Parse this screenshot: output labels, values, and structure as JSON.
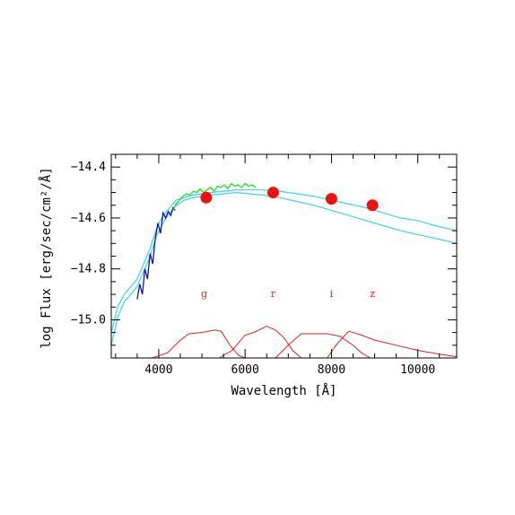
{
  "chart_data": {
    "type": "line",
    "title": "",
    "xlabel": "Wavelength [Å]",
    "ylabel": "log Flux [erg/sec/cm²/Å]",
    "xlim": [
      2900,
      10900
    ],
    "ylim": [
      -15.15,
      -14.35
    ],
    "x_ticks": [
      4000,
      6000,
      8000,
      10000
    ],
    "x_tick_labels": [
      "4000",
      "6000",
      "8000",
      "10000"
    ],
    "y_ticks": [
      -15.0,
      -14.8,
      -14.6,
      -14.4
    ],
    "y_tick_labels": [
      "−15.0",
      "−14.8",
      "−14.6",
      "−14.4"
    ],
    "grid": false,
    "colors": {
      "model": "#39d4e4",
      "spectrum_blue": "#1414a0",
      "spectrum_green": "#22dd22",
      "photometry": "#ee1111",
      "filters": "#dd2222",
      "frame": "#000000"
    },
    "photometry_points": [
      {
        "band": "g",
        "x": 5100,
        "y": -14.52
      },
      {
        "band": "r",
        "x": 6650,
        "y": -14.5
      },
      {
        "band": "i",
        "x": 8000,
        "y": -14.525
      },
      {
        "band": "z",
        "x": 8950,
        "y": -14.55
      }
    ],
    "band_labels": [
      {
        "text": "g",
        "x": 5050,
        "y": -14.91
      },
      {
        "text": "r",
        "x": 6650,
        "y": -14.91
      },
      {
        "text": "i",
        "x": 8000,
        "y": -14.91
      },
      {
        "text": "z",
        "x": 8950,
        "y": -14.91
      }
    ],
    "series": [
      {
        "x": [
          2900,
          3050,
          3200,
          3350,
          3500,
          3650,
          3800,
          3950,
          4100,
          4250,
          4400,
          4600,
          4800,
          5000,
          5200,
          5500,
          5800,
          6100,
          6400,
          6800,
          7200,
          7600,
          8000,
          8400,
          8800,
          9200,
          9600,
          10000,
          10400,
          10900
        ],
        "y": [
          -15.05,
          -14.95,
          -14.9,
          -14.87,
          -14.84,
          -14.78,
          -14.72,
          -14.64,
          -14.59,
          -14.56,
          -14.53,
          -14.52,
          -14.51,
          -14.505,
          -14.5,
          -14.495,
          -14.49,
          -14.49,
          -14.49,
          -14.495,
          -14.505,
          -14.515,
          -14.53,
          -14.545,
          -14.56,
          -14.58,
          -14.6,
          -14.61,
          -14.63,
          -14.65
        ]
      },
      {
        "x": [
          2900,
          3050,
          3200,
          3350,
          3500,
          3650,
          3800,
          3950,
          4100,
          4250,
          4400,
          4600,
          4800,
          5000,
          5200,
          5500,
          5800,
          6100,
          6400,
          6800,
          7200,
          7600,
          8000,
          8400,
          8800,
          9200,
          9600,
          10000,
          10400,
          10900
        ],
        "y": [
          -15.1,
          -14.99,
          -14.93,
          -14.9,
          -14.87,
          -14.81,
          -14.75,
          -14.67,
          -14.62,
          -14.58,
          -14.55,
          -14.53,
          -14.52,
          -14.515,
          -14.51,
          -14.505,
          -14.5,
          -14.505,
          -14.51,
          -14.52,
          -14.535,
          -14.55,
          -14.57,
          -14.59,
          -14.61,
          -14.63,
          -14.65,
          -14.665,
          -14.68,
          -14.7
        ]
      }
    ],
    "spectrum": {
      "blue": {
        "x": [
          3500,
          3560,
          3620,
          3680,
          3740,
          3800,
          3860,
          3920,
          3980,
          4040,
          4100,
          4160,
          4220,
          4280,
          4330,
          4380
        ],
        "y": [
          -14.92,
          -14.86,
          -14.9,
          -14.8,
          -14.84,
          -14.74,
          -14.78,
          -14.68,
          -14.62,
          -14.66,
          -14.58,
          -14.6,
          -14.575,
          -14.59,
          -14.56,
          -14.57
        ]
      },
      "green": {
        "x": [
          4330,
          4400,
          4480,
          4560,
          4640,
          4720,
          4800,
          4880,
          4960,
          5040,
          5120,
          5200,
          5280,
          5360,
          5440,
          5520,
          5600,
          5680,
          5760,
          5840,
          5920,
          6000,
          6080,
          6160,
          6250
        ],
        "y": [
          -14.57,
          -14.545,
          -14.53,
          -14.515,
          -14.505,
          -14.51,
          -14.495,
          -14.5,
          -14.485,
          -14.5,
          -14.49,
          -14.48,
          -14.495,
          -14.475,
          -14.48,
          -14.47,
          -14.485,
          -14.465,
          -14.475,
          -14.47,
          -14.48,
          -14.465,
          -14.475,
          -14.47,
          -14.48
        ]
      }
    },
    "filters": [
      {
        "band": "g",
        "x": [
          3850,
          4200,
          4500,
          4700,
          5000,
          5300,
          5450,
          5650,
          5850,
          6000
        ],
        "y": [
          -15.15,
          -15.13,
          -15.08,
          -15.055,
          -15.05,
          -15.04,
          -15.045,
          -15.1,
          -15.14,
          -15.15
        ]
      },
      {
        "band": "r",
        "x": [
          5400,
          5700,
          6000,
          6200,
          6500,
          6700,
          6900,
          7100,
          7300
        ],
        "y": [
          -15.15,
          -15.12,
          -15.06,
          -15.05,
          -15.025,
          -15.04,
          -15.07,
          -15.12,
          -15.15
        ]
      },
      {
        "band": "i",
        "x": [
          6700,
          7000,
          7300,
          7600,
          7900,
          8200,
          8500,
          8700,
          8900
        ],
        "y": [
          -15.15,
          -15.1,
          -15.055,
          -15.055,
          -15.055,
          -15.065,
          -15.1,
          -15.13,
          -15.15
        ]
      },
      {
        "band": "z",
        "x": [
          7900,
          8150,
          8400,
          8700,
          9000,
          9500,
          10000,
          10500,
          10900
        ],
        "y": [
          -15.15,
          -15.09,
          -15.045,
          -15.06,
          -15.08,
          -15.1,
          -15.12,
          -15.135,
          -15.145
        ]
      }
    ]
  }
}
